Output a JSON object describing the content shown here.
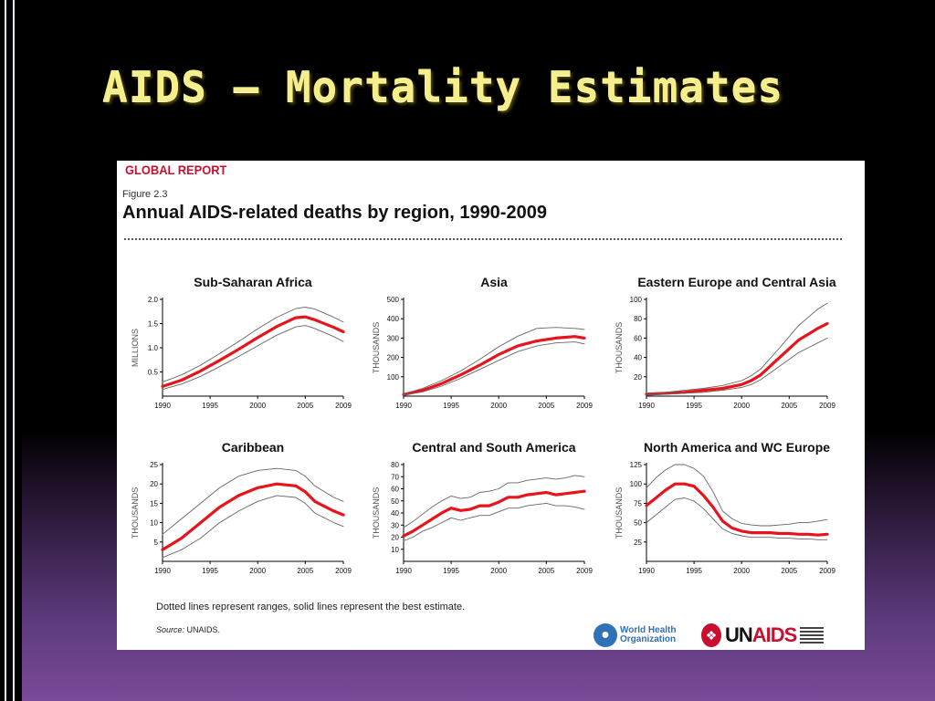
{
  "slide": {
    "title": "AIDS – Mortality Estimates"
  },
  "figure": {
    "header": "GLOBAL REPORT",
    "number": "Figure 2.3",
    "title": "Annual AIDS-related deaths by region, 1990-2009",
    "note": "Dotted lines represent ranges, solid lines represent the best estimate.",
    "source_label": "Source:",
    "source_text": " UNAIDS.",
    "logos": {
      "who": "World Health Organization",
      "unaids": "UNAIDS"
    }
  },
  "colors": {
    "best_estimate": "#e8141b",
    "range": "#666666",
    "brand_red": "#c8102e",
    "who_blue": "#2f72b8"
  },
  "icons": [
    "who-globe-icon",
    "unaids-ribbon-icon"
  ],
  "chart_data": [
    {
      "type": "line",
      "title": "Sub-Saharan Africa",
      "ylabel": "MILLIONS",
      "ylim": [
        0,
        2.0
      ],
      "yticks": [
        0.5,
        1.0,
        1.5,
        2.0
      ],
      "ytick_labels": [
        "0.5",
        "1.0",
        "1.5",
        "2.0"
      ],
      "xlim": [
        1990,
        2009
      ],
      "xticks": [
        1990,
        1995,
        2000,
        2005,
        2009
      ],
      "x": [
        1990,
        1992,
        1994,
        1996,
        1998,
        2000,
        2002,
        2004,
        2005,
        2006,
        2008,
        2009
      ],
      "series": [
        {
          "role": "best",
          "values": [
            0.2,
            0.33,
            0.52,
            0.74,
            0.97,
            1.21,
            1.44,
            1.62,
            1.64,
            1.58,
            1.42,
            1.33
          ]
        },
        {
          "role": "upper",
          "values": [
            0.29,
            0.44,
            0.64,
            0.88,
            1.13,
            1.39,
            1.63,
            1.81,
            1.84,
            1.8,
            1.63,
            1.53
          ]
        },
        {
          "role": "lower",
          "values": [
            0.14,
            0.25,
            0.41,
            0.61,
            0.82,
            1.04,
            1.26,
            1.43,
            1.46,
            1.4,
            1.23,
            1.13
          ]
        }
      ]
    },
    {
      "type": "line",
      "title": "Asia",
      "ylabel": "THOUSANDS",
      "ylim": [
        0,
        500
      ],
      "yticks": [
        100,
        200,
        300,
        400,
        500
      ],
      "ytick_labels": [
        "100",
        "200",
        "300",
        "400",
        "500"
      ],
      "xlim": [
        1990,
        2009
      ],
      "xticks": [
        1990,
        1995,
        2000,
        2005,
        2009
      ],
      "x": [
        1990,
        1992,
        1994,
        1996,
        1998,
        2000,
        2002,
        2004,
        2006,
        2008,
        2009
      ],
      "series": [
        {
          "role": "best",
          "values": [
            8,
            30,
            65,
            110,
            160,
            215,
            260,
            285,
            300,
            308,
            300
          ]
        },
        {
          "role": "upper",
          "values": [
            12,
            40,
            80,
            130,
            190,
            255,
            310,
            350,
            355,
            350,
            345
          ]
        },
        {
          "role": "lower",
          "values": [
            5,
            22,
            52,
            92,
            138,
            185,
            230,
            260,
            275,
            280,
            270
          ]
        }
      ]
    },
    {
      "type": "line",
      "title": "Eastern Europe and Central Asia",
      "ylabel": "THOUSANDS",
      "ylim": [
        0,
        100
      ],
      "yticks": [
        20,
        40,
        60,
        80,
        100
      ],
      "ytick_labels": [
        "20",
        "40",
        "60",
        "80",
        "100"
      ],
      "xlim": [
        1990,
        2009
      ],
      "xticks": [
        1990,
        1995,
        2000,
        2005,
        2009
      ],
      "x": [
        1990,
        1992,
        1994,
        1996,
        1998,
        2000,
        2001,
        2002,
        2004,
        2006,
        2008,
        2009
      ],
      "series": [
        {
          "role": "best",
          "values": [
            2,
            3,
            4,
            6,
            8,
            12,
            16,
            22,
            40,
            58,
            70,
            75
          ]
        },
        {
          "role": "upper",
          "values": [
            3,
            4,
            6,
            8,
            11,
            16,
            21,
            28,
            50,
            73,
            90,
            96
          ]
        },
        {
          "role": "lower",
          "values": [
            1,
            2,
            3,
            4,
            6,
            9,
            12,
            17,
            31,
            45,
            55,
            60
          ]
        }
      ]
    },
    {
      "type": "line",
      "title": "Caribbean",
      "ylabel": "THOUSANDS",
      "ylim": [
        0,
        25
      ],
      "yticks": [
        5,
        10,
        15,
        20,
        25
      ],
      "ytick_labels": [
        "5",
        "10",
        "15",
        "20",
        "25"
      ],
      "xlim": [
        1990,
        2009
      ],
      "xticks": [
        1990,
        1995,
        2000,
        2005,
        2009
      ],
      "x": [
        1990,
        1992,
        1994,
        1996,
        1998,
        2000,
        2002,
        2004,
        2005,
        2006,
        2008,
        2009
      ],
      "series": [
        {
          "role": "best",
          "values": [
            3,
            6,
            10,
            14,
            17,
            19,
            20,
            19.5,
            18,
            15.5,
            13,
            12
          ]
        },
        {
          "role": "upper",
          "values": [
            7,
            11,
            15,
            19,
            22,
            23.5,
            24,
            23.5,
            22,
            19.5,
            16.5,
            15.5
          ]
        },
        {
          "role": "lower",
          "values": [
            1,
            3,
            6,
            10,
            13,
            15.5,
            17,
            16.5,
            15,
            12.5,
            10,
            9
          ]
        }
      ]
    },
    {
      "type": "line",
      "title": "Central and South America",
      "ylabel": "THOUSANDS",
      "ylim": [
        0,
        80
      ],
      "yticks": [
        10,
        20,
        30,
        40,
        50,
        60,
        70,
        80
      ],
      "ytick_labels": [
        "10",
        "20",
        "30",
        "40",
        "50",
        "60",
        "70",
        "80"
      ],
      "xlim": [
        1990,
        2009
      ],
      "xticks": [
        1990,
        1995,
        2000,
        2005,
        2009
      ],
      "x": [
        1990,
        1991,
        1992,
        1993,
        1994,
        1995,
        1996,
        1997,
        1998,
        1999,
        2000,
        2001,
        2002,
        2003,
        2004,
        2005,
        2006,
        2007,
        2008,
        2009
      ],
      "series": [
        {
          "role": "best",
          "values": [
            21,
            25,
            30,
            35,
            40,
            44,
            42,
            43,
            46,
            46,
            49,
            53,
            53,
            55,
            56,
            57,
            55,
            56,
            57,
            58
          ]
        },
        {
          "role": "upper",
          "values": [
            28,
            33,
            39,
            45,
            50,
            54,
            52,
            53,
            57,
            58,
            60,
            65,
            65,
            67,
            68,
            69,
            68,
            69,
            71,
            70
          ]
        },
        {
          "role": "lower",
          "values": [
            17,
            20,
            25,
            28,
            32,
            36,
            34,
            36,
            38,
            38,
            41,
            44,
            44,
            46,
            47,
            48,
            46,
            46,
            45,
            43
          ]
        }
      ]
    },
    {
      "type": "line",
      "title": "North America and WC Europe",
      "ylabel": "THOUSANDS",
      "ylim": [
        0,
        125
      ],
      "yticks": [
        25,
        50,
        75,
        100,
        125
      ],
      "ytick_labels": [
        "25",
        "50",
        "75",
        "100",
        "125"
      ],
      "xlim": [
        1990,
        2009
      ],
      "xticks": [
        1990,
        1995,
        2000,
        2005,
        2009
      ],
      "x": [
        1990,
        1991,
        1992,
        1993,
        1994,
        1995,
        1996,
        1997,
        1998,
        1999,
        2000,
        2001,
        2002,
        2003,
        2004,
        2005,
        2006,
        2007,
        2008,
        2009
      ],
      "series": [
        {
          "role": "best",
          "values": [
            72,
            82,
            92,
            100,
            100,
            97,
            85,
            70,
            52,
            43,
            39,
            37,
            37,
            37,
            36,
            36,
            35,
            35,
            34,
            35
          ]
        },
        {
          "role": "upper",
          "values": [
            95,
            108,
            118,
            125,
            125,
            120,
            110,
            90,
            65,
            55,
            49,
            47,
            46,
            46,
            47,
            48,
            50,
            50,
            52,
            54
          ]
        },
        {
          "role": "lower",
          "values": [
            50,
            60,
            70,
            80,
            82,
            78,
            68,
            55,
            42,
            36,
            33,
            31,
            31,
            31,
            30,
            30,
            29,
            29,
            28,
            28
          ]
        }
      ]
    }
  ]
}
